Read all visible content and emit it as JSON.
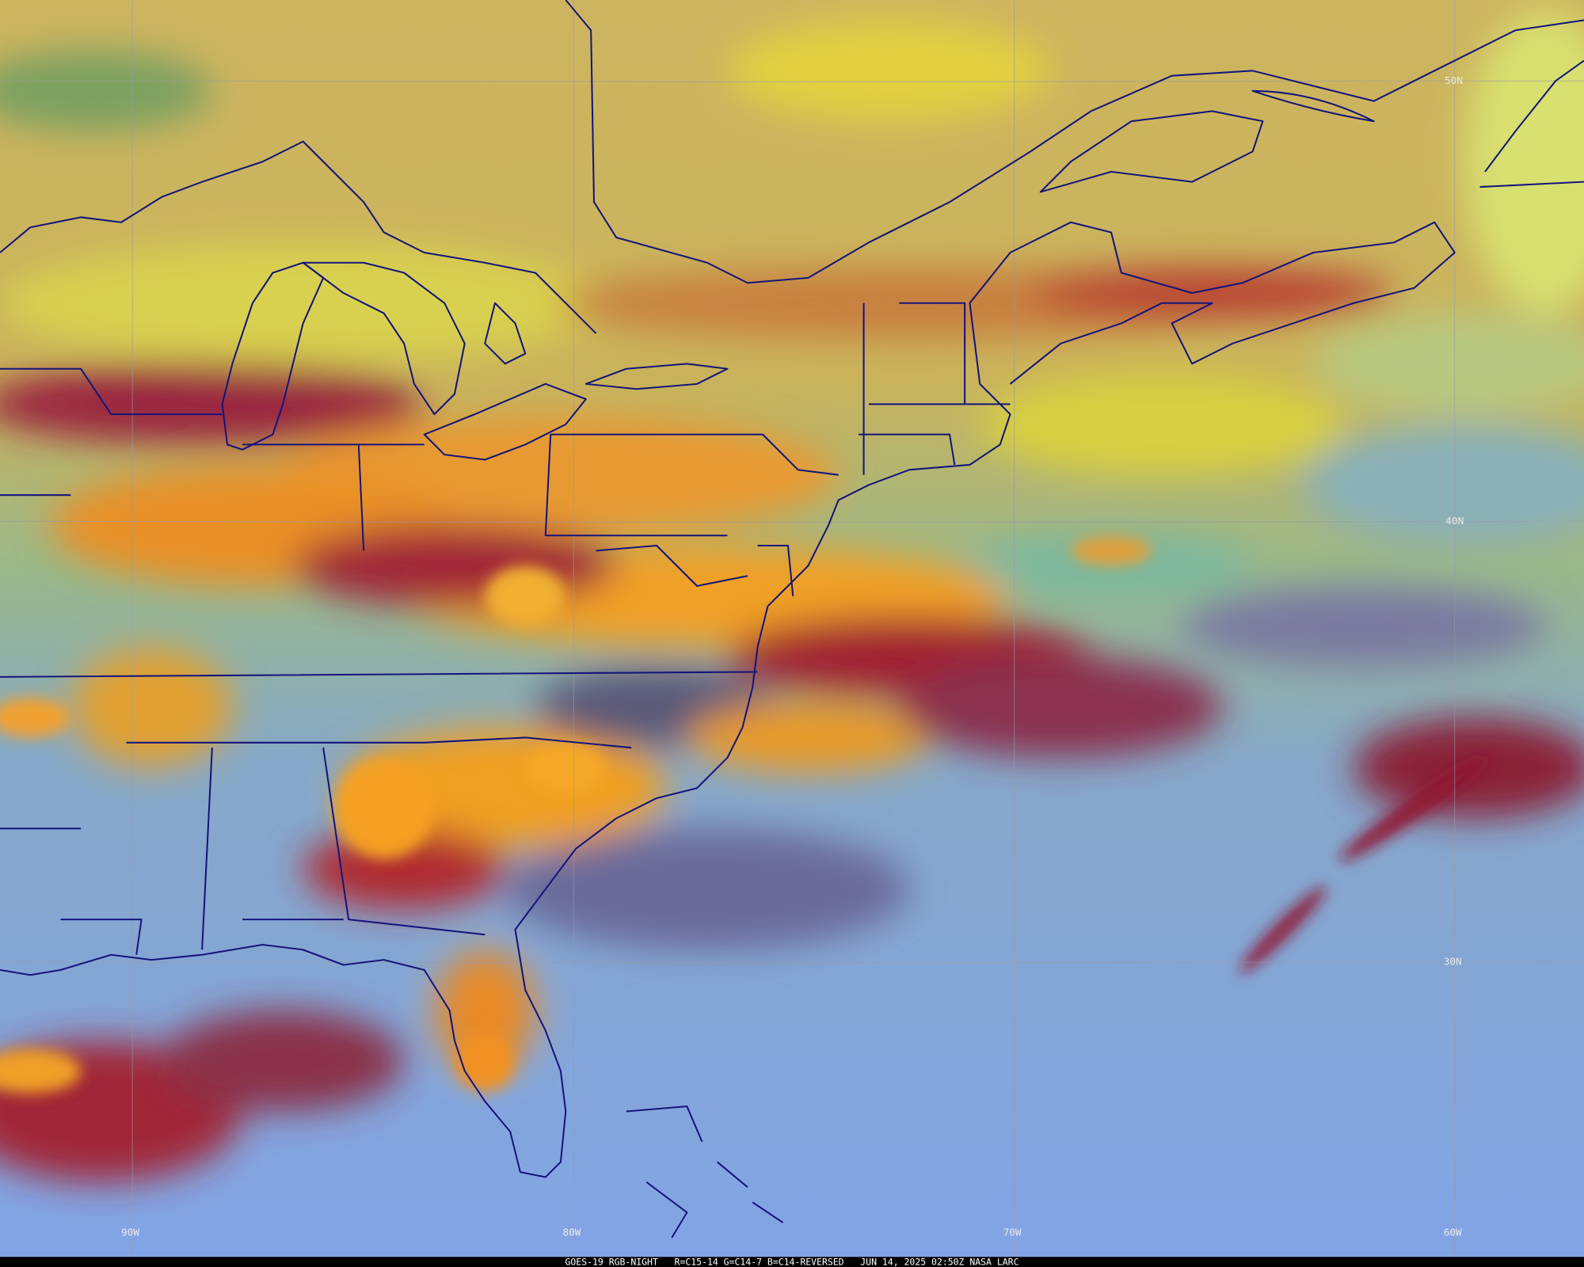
{
  "map": {
    "lat_labels": [
      "50N",
      "40N",
      "30N"
    ],
    "lon_labels": [
      "90W",
      "80W",
      "70W",
      "60W"
    ],
    "footer": "GOES-19 RGB-NIGHT   R=C15-14 G=C14-7 B=C14-REVERSED   JUN 14, 2025 02:50Z NASA LARC"
  }
}
